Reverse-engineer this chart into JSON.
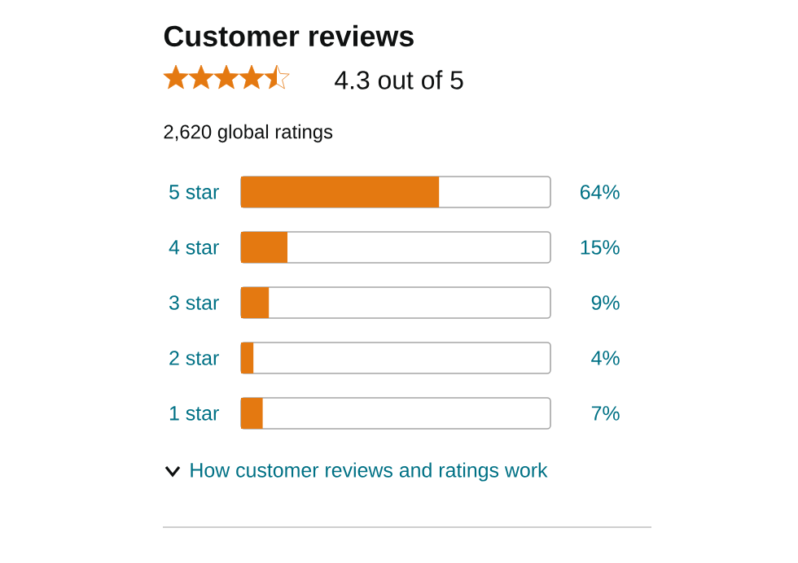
{
  "chart_data": {
    "type": "bar",
    "orientation": "horizontal",
    "title": "Customer reviews",
    "subtitle": "4.3 out of 5",
    "annotations": [
      "2,620 global ratings",
      "How customer reviews and ratings work"
    ],
    "categories": [
      "5 star",
      "4 star",
      "3 star",
      "2 star",
      "1 star"
    ],
    "values": [
      64,
      15,
      9,
      4,
      7
    ],
    "value_labels": [
      "64%",
      "15%",
      "9%",
      "4%",
      "7%"
    ],
    "color": "#e47911",
    "xlim": [
      0,
      100
    ]
  }
}
